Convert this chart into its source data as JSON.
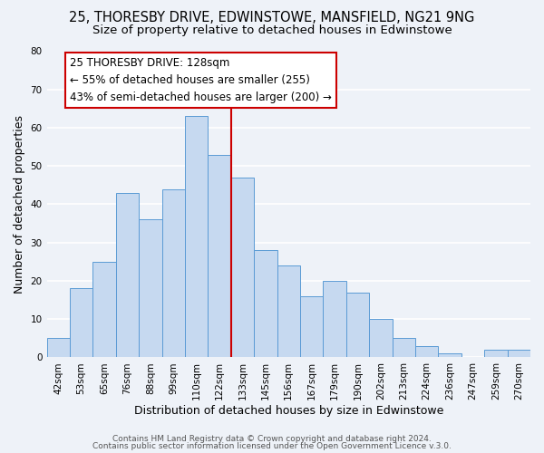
{
  "title": "25, THORESBY DRIVE, EDWINSTOWE, MANSFIELD, NG21 9NG",
  "subtitle": "Size of property relative to detached houses in Edwinstowe",
  "xlabel": "Distribution of detached houses by size in Edwinstowe",
  "ylabel": "Number of detached properties",
  "bar_labels": [
    "42sqm",
    "53sqm",
    "65sqm",
    "76sqm",
    "88sqm",
    "99sqm",
    "110sqm",
    "122sqm",
    "133sqm",
    "145sqm",
    "156sqm",
    "167sqm",
    "179sqm",
    "190sqm",
    "202sqm",
    "213sqm",
    "224sqm",
    "236sqm",
    "247sqm",
    "259sqm",
    "270sqm"
  ],
  "bar_values": [
    5,
    18,
    25,
    43,
    36,
    44,
    63,
    53,
    47,
    28,
    24,
    16,
    20,
    17,
    10,
    5,
    3,
    1,
    0,
    2,
    2
  ],
  "bar_color": "#c6d9f0",
  "bar_edge_color": "#5b9bd5",
  "vline_x": 7.5,
  "vline_color": "#cc0000",
  "ann_line1": "25 THORESBY DRIVE: 128sqm",
  "ann_line2": "← 55% of detached houses are smaller (255)",
  "ann_line3": "43% of semi-detached houses are larger (200) →",
  "annotation_box_facecolor": "#ffffff",
  "annotation_box_edgecolor": "#cc0000",
  "ylim": [
    0,
    80
  ],
  "yticks": [
    0,
    10,
    20,
    30,
    40,
    50,
    60,
    70,
    80
  ],
  "footer1": "Contains HM Land Registry data © Crown copyright and database right 2024.",
  "footer2": "Contains public sector information licensed under the Open Government Licence v.3.0.",
  "background_color": "#eef2f8",
  "grid_color": "#ffffff",
  "title_fontsize": 10.5,
  "subtitle_fontsize": 9.5,
  "axis_label_fontsize": 9,
  "tick_fontsize": 7.5,
  "footer_fontsize": 6.5,
  "ann_fontsize": 8.5
}
